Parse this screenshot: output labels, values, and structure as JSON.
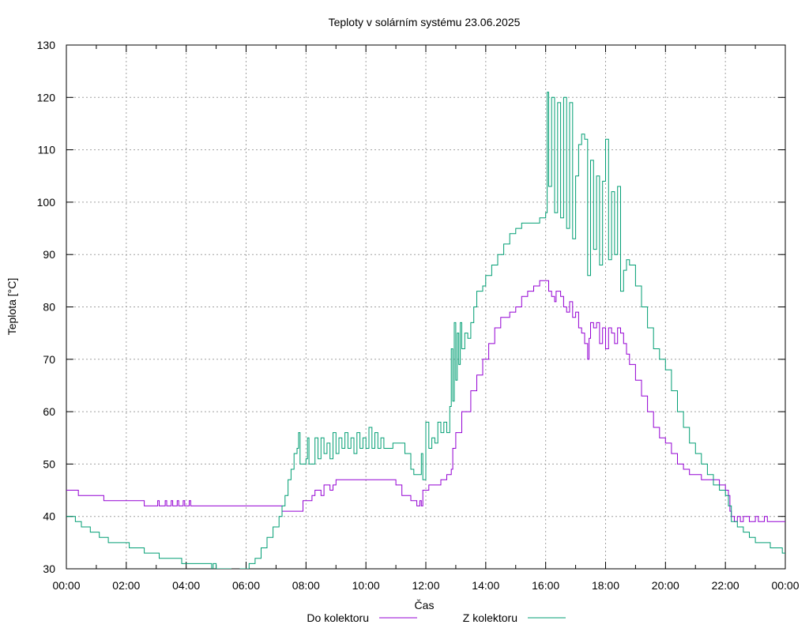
{
  "chart_data": {
    "type": "line",
    "title": "Teploty v solárním systému 23.06.2025",
    "xlabel": "Čas",
    "ylabel": "Teplota [°C]",
    "x_unit": "hours",
    "xlim": [
      0,
      24
    ],
    "ylim": [
      30,
      130
    ],
    "x_ticks": [
      0,
      2,
      4,
      6,
      8,
      10,
      12,
      14,
      16,
      18,
      20,
      22,
      24
    ],
    "x_tick_labels": [
      "00:00",
      "02:00",
      "04:00",
      "06:00",
      "08:00",
      "10:00",
      "12:00",
      "14:00",
      "16:00",
      "18:00",
      "20:00",
      "22:00",
      "00:00"
    ],
    "y_ticks": [
      30,
      40,
      50,
      60,
      70,
      80,
      90,
      100,
      110,
      120,
      130
    ],
    "y_tick_labels": [
      "30",
      "40",
      "50",
      "60",
      "70",
      "80",
      "90",
      "100",
      "110",
      "120",
      "130"
    ],
    "grid": true,
    "legend_position": "bottom-center",
    "series": [
      {
        "name": "Do kolektoru",
        "color": "#9400d3",
        "points": [
          [
            0,
            45
          ],
          [
            0.4,
            45
          ],
          [
            0.4,
            44
          ],
          [
            1.25,
            44
          ],
          [
            1.25,
            43
          ],
          [
            2.6,
            43
          ],
          [
            2.6,
            42
          ],
          [
            3.0,
            42
          ],
          [
            3.05,
            43
          ],
          [
            3.1,
            42
          ],
          [
            3.3,
            43
          ],
          [
            3.35,
            42
          ],
          [
            3.5,
            43
          ],
          [
            3.55,
            42
          ],
          [
            3.7,
            43
          ],
          [
            3.75,
            42
          ],
          [
            3.9,
            43
          ],
          [
            3.95,
            42
          ],
          [
            4.1,
            43
          ],
          [
            4.15,
            42
          ],
          [
            4.5,
            42
          ],
          [
            5.5,
            42
          ],
          [
            6.5,
            42
          ],
          [
            7.2,
            42
          ],
          [
            7.2,
            41
          ],
          [
            7.8,
            41
          ],
          [
            7.9,
            43
          ],
          [
            8.2,
            44
          ],
          [
            8.3,
            45
          ],
          [
            8.5,
            44
          ],
          [
            8.6,
            46
          ],
          [
            8.8,
            45
          ],
          [
            8.9,
            46
          ],
          [
            9.0,
            47
          ],
          [
            9.3,
            47
          ],
          [
            10.0,
            47
          ],
          [
            10.5,
            47
          ],
          [
            11.0,
            46
          ],
          [
            11.2,
            44
          ],
          [
            11.5,
            43
          ],
          [
            11.7,
            42
          ],
          [
            11.8,
            43
          ],
          [
            11.85,
            42
          ],
          [
            11.9,
            45
          ],
          [
            12.1,
            46
          ],
          [
            12.5,
            47
          ],
          [
            12.7,
            48
          ],
          [
            12.85,
            49
          ],
          [
            12.9,
            53
          ],
          [
            13.0,
            56
          ],
          [
            13.2,
            60
          ],
          [
            13.5,
            64
          ],
          [
            13.7,
            67
          ],
          [
            13.9,
            70
          ],
          [
            14.1,
            73
          ],
          [
            14.3,
            76
          ],
          [
            14.5,
            78
          ],
          [
            14.8,
            79
          ],
          [
            15.0,
            80
          ],
          [
            15.2,
            82
          ],
          [
            15.4,
            83
          ],
          [
            15.6,
            84
          ],
          [
            15.8,
            85
          ],
          [
            16.0,
            85
          ],
          [
            16.1,
            83
          ],
          [
            16.2,
            82
          ],
          [
            16.3,
            81
          ],
          [
            16.35,
            83
          ],
          [
            16.5,
            82
          ],
          [
            16.6,
            80
          ],
          [
            16.7,
            79
          ],
          [
            16.8,
            81
          ],
          [
            16.9,
            78
          ],
          [
            17.0,
            79
          ],
          [
            17.1,
            76
          ],
          [
            17.2,
            75
          ],
          [
            17.3,
            73
          ],
          [
            17.4,
            70
          ],
          [
            17.45,
            74
          ],
          [
            17.5,
            77
          ],
          [
            17.6,
            76
          ],
          [
            17.7,
            77
          ],
          [
            17.8,
            73
          ],
          [
            17.9,
            76
          ],
          [
            18.0,
            72
          ],
          [
            18.1,
            76
          ],
          [
            18.2,
            75
          ],
          [
            18.3,
            73
          ],
          [
            18.4,
            76
          ],
          [
            18.5,
            75
          ],
          [
            18.6,
            73
          ],
          [
            18.7,
            71
          ],
          [
            18.8,
            69
          ],
          [
            19.0,
            66
          ],
          [
            19.2,
            63
          ],
          [
            19.4,
            60
          ],
          [
            19.6,
            57
          ],
          [
            19.8,
            55
          ],
          [
            20.0,
            54
          ],
          [
            20.2,
            52
          ],
          [
            20.4,
            50
          ],
          [
            20.6,
            49
          ],
          [
            20.8,
            48
          ],
          [
            21.0,
            48
          ],
          [
            21.2,
            47
          ],
          [
            21.4,
            47
          ],
          [
            21.6,
            47
          ],
          [
            21.8,
            46
          ],
          [
            22.0,
            45
          ],
          [
            22.1,
            44
          ],
          [
            22.15,
            41
          ],
          [
            22.2,
            40
          ],
          [
            22.3,
            39
          ],
          [
            22.4,
            40
          ],
          [
            22.5,
            39
          ],
          [
            22.6,
            40
          ],
          [
            22.8,
            39
          ],
          [
            23.0,
            40
          ],
          [
            23.1,
            39
          ],
          [
            23.3,
            40
          ],
          [
            23.4,
            39
          ],
          [
            24.0,
            39
          ]
        ]
      },
      {
        "name": "Z kolektoru",
        "color": "#009e73",
        "points": [
          [
            0,
            40
          ],
          [
            0.3,
            39
          ],
          [
            0.5,
            38
          ],
          [
            0.8,
            37
          ],
          [
            1.1,
            36
          ],
          [
            1.4,
            35
          ],
          [
            2.0,
            35
          ],
          [
            2.1,
            34
          ],
          [
            2.6,
            33
          ],
          [
            3.0,
            33
          ],
          [
            3.1,
            32
          ],
          [
            3.8,
            32
          ],
          [
            3.85,
            31
          ],
          [
            4.3,
            31
          ],
          [
            4.8,
            31
          ],
          [
            4.85,
            29
          ],
          [
            4.9,
            31
          ],
          [
            5.0,
            30
          ],
          [
            5.3,
            30
          ],
          [
            5.5,
            29
          ],
          [
            5.8,
            30
          ],
          [
            6.0,
            30
          ],
          [
            6.1,
            31
          ],
          [
            6.3,
            32
          ],
          [
            6.5,
            34
          ],
          [
            6.7,
            36
          ],
          [
            6.9,
            38
          ],
          [
            7.1,
            40
          ],
          [
            7.2,
            42
          ],
          [
            7.3,
            44
          ],
          [
            7.4,
            47
          ],
          [
            7.5,
            49
          ],
          [
            7.6,
            52
          ],
          [
            7.7,
            53
          ],
          [
            7.75,
            56
          ],
          [
            7.8,
            50
          ],
          [
            8.0,
            51
          ],
          [
            8.05,
            55
          ],
          [
            8.1,
            50
          ],
          [
            8.3,
            55
          ],
          [
            8.4,
            51
          ],
          [
            8.5,
            55
          ],
          [
            8.6,
            52
          ],
          [
            8.7,
            54
          ],
          [
            8.8,
            51
          ],
          [
            8.9,
            56
          ],
          [
            9.0,
            52
          ],
          [
            9.1,
            55
          ],
          [
            9.2,
            53
          ],
          [
            9.3,
            56
          ],
          [
            9.4,
            53
          ],
          [
            9.5,
            55
          ],
          [
            9.6,
            52
          ],
          [
            9.7,
            56
          ],
          [
            9.8,
            53
          ],
          [
            9.9,
            55
          ],
          [
            10.0,
            53
          ],
          [
            10.1,
            57
          ],
          [
            10.2,
            53
          ],
          [
            10.3,
            56
          ],
          [
            10.4,
            53
          ],
          [
            10.5,
            55
          ],
          [
            10.6,
            53
          ],
          [
            10.8,
            53
          ],
          [
            10.9,
            54
          ],
          [
            11.1,
            54
          ],
          [
            11.3,
            52
          ],
          [
            11.5,
            49
          ],
          [
            11.6,
            48
          ],
          [
            11.8,
            48
          ],
          [
            11.85,
            52
          ],
          [
            11.9,
            47
          ],
          [
            12.0,
            58
          ],
          [
            12.1,
            53
          ],
          [
            12.2,
            55
          ],
          [
            12.3,
            54
          ],
          [
            12.4,
            58
          ],
          [
            12.5,
            56
          ],
          [
            12.6,
            58
          ],
          [
            12.7,
            56
          ],
          [
            12.8,
            61
          ],
          [
            12.85,
            72
          ],
          [
            12.9,
            62
          ],
          [
            12.95,
            77
          ],
          [
            13.0,
            66
          ],
          [
            13.05,
            75
          ],
          [
            13.1,
            69
          ],
          [
            13.15,
            77
          ],
          [
            13.2,
            72
          ],
          [
            13.3,
            75
          ],
          [
            13.4,
            74
          ],
          [
            13.5,
            77
          ],
          [
            13.6,
            80
          ],
          [
            13.7,
            83
          ],
          [
            13.9,
            84
          ],
          [
            14.0,
            86
          ],
          [
            14.2,
            88
          ],
          [
            14.4,
            90
          ],
          [
            14.6,
            92
          ],
          [
            14.8,
            94
          ],
          [
            15.0,
            95
          ],
          [
            15.2,
            96
          ],
          [
            15.5,
            96
          ],
          [
            15.8,
            97
          ],
          [
            16.0,
            98
          ],
          [
            16.05,
            121
          ],
          [
            16.1,
            103
          ],
          [
            16.2,
            120
          ],
          [
            16.3,
            98
          ],
          [
            16.4,
            119
          ],
          [
            16.5,
            97
          ],
          [
            16.6,
            120
          ],
          [
            16.7,
            95
          ],
          [
            16.8,
            119
          ],
          [
            16.9,
            93
          ],
          [
            17.0,
            105
          ],
          [
            17.1,
            111
          ],
          [
            17.2,
            113
          ],
          [
            17.3,
            112
          ],
          [
            17.4,
            86
          ],
          [
            17.5,
            108
          ],
          [
            17.6,
            91
          ],
          [
            17.7,
            105
          ],
          [
            17.8,
            88
          ],
          [
            17.9,
            104
          ],
          [
            18.0,
            112
          ],
          [
            18.1,
            89
          ],
          [
            18.2,
            102
          ],
          [
            18.3,
            90
          ],
          [
            18.4,
            103
          ],
          [
            18.5,
            83
          ],
          [
            18.6,
            87
          ],
          [
            18.7,
            89
          ],
          [
            18.8,
            88
          ],
          [
            19.0,
            84
          ],
          [
            19.2,
            80
          ],
          [
            19.4,
            76
          ],
          [
            19.6,
            72
          ],
          [
            19.8,
            70
          ],
          [
            20.0,
            68
          ],
          [
            20.2,
            64
          ],
          [
            20.4,
            60
          ],
          [
            20.6,
            57
          ],
          [
            20.8,
            54
          ],
          [
            21.0,
            52
          ],
          [
            21.2,
            50
          ],
          [
            21.4,
            48
          ],
          [
            21.6,
            46
          ],
          [
            21.8,
            45
          ],
          [
            22.0,
            44
          ],
          [
            22.1,
            42
          ],
          [
            22.2,
            39
          ],
          [
            22.4,
            38
          ],
          [
            22.6,
            37
          ],
          [
            22.8,
            36
          ],
          [
            23.0,
            35
          ],
          [
            23.4,
            35
          ],
          [
            23.5,
            34
          ],
          [
            23.8,
            34
          ],
          [
            23.9,
            33
          ],
          [
            24.0,
            33
          ]
        ]
      }
    ]
  }
}
